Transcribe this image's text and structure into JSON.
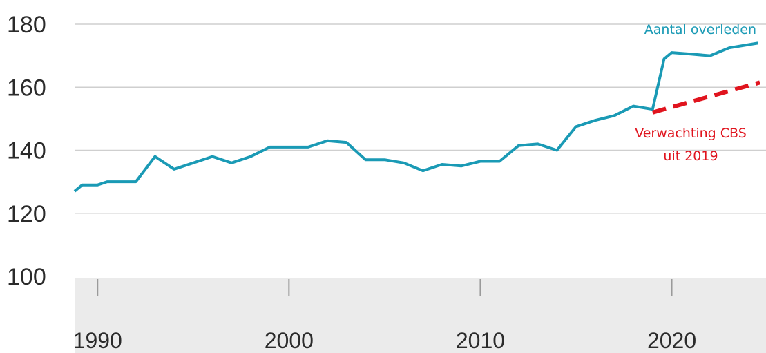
{
  "chart_data": {
    "type": "line",
    "title": "",
    "xlabel": "",
    "ylabel": "",
    "xlim": [
      1988.8,
      2024.6
    ],
    "ylim": [
      100,
      180
    ],
    "yticks": [
      100,
      120,
      140,
      160,
      180
    ],
    "xticks": [
      1990,
      2000,
      2010,
      2020
    ],
    "ytick_labels": [
      "100",
      "120",
      "140",
      "160",
      "180"
    ],
    "xtick_labels": [
      "1990",
      "2000",
      "2010",
      "2020"
    ],
    "grid": true,
    "series": [
      {
        "name": "Aantal overleden",
        "color": "#1a9ab5",
        "style": "solid",
        "x": [
          1988.8,
          1989.2,
          1990,
          1990.5,
          1991,
          1992,
          1993,
          1994,
          1995,
          1996,
          1997,
          1998,
          1999,
          2000,
          2001,
          2002,
          2003,
          2004,
          2005,
          2006,
          2007,
          2008,
          2009,
          2010,
          2011,
          2012,
          2013,
          2014,
          2015,
          2016,
          2017,
          2018,
          2019,
          2019.6,
          2020,
          2021,
          2022,
          2023,
          2024.5
        ],
        "y": [
          127,
          129,
          129,
          130,
          130,
          130,
          138,
          134,
          136,
          138,
          136,
          138,
          141,
          141,
          141,
          143,
          142.5,
          137,
          137,
          136,
          133.5,
          135.5,
          135,
          136.5,
          136.5,
          141.5,
          142,
          140,
          147.5,
          149.5,
          151,
          154,
          153,
          169,
          171,
          170.5,
          170,
          172.5,
          174
        ]
      },
      {
        "name": "Verwachting CBS uit 2019",
        "color": "#e0141e",
        "style": "dashed",
        "x": [
          2019,
          2024.6
        ],
        "y": [
          152,
          161.5
        ]
      }
    ],
    "series_labels": [
      {
        "line1": "Aantal overleden",
        "line2": "",
        "color": "#1a9ab5"
      },
      {
        "line1": "Verwachting CBS",
        "line2": "uit 2019",
        "color": "#e0141e"
      }
    ]
  }
}
